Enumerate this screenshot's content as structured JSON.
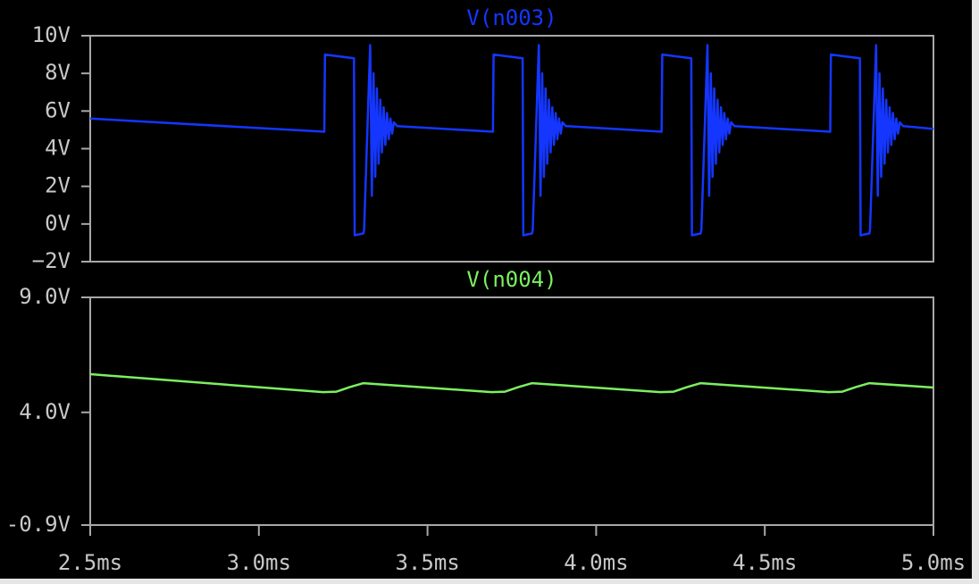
{
  "chart_data": [
    {
      "type": "line",
      "xlim": [
        2.5,
        5.0
      ],
      "ylim": [
        -2,
        10
      ],
      "yticks": [
        {
          "value": 10,
          "label": "10V"
        },
        {
          "value": 8,
          "label": "8V"
        },
        {
          "value": 6,
          "label": "6V"
        },
        {
          "value": 4,
          "label": "4V"
        },
        {
          "value": 2,
          "label": "2V"
        },
        {
          "value": 0,
          "label": "0V"
        },
        {
          "value": -2,
          "label": "−2V"
        }
      ],
      "x": [
        2.5,
        3.194,
        3.196,
        3.282,
        3.284,
        3.31,
        3.312,
        3.33,
        3.335,
        3.34,
        3.345,
        3.35,
        3.355,
        3.36,
        3.365,
        3.37,
        3.375,
        3.38,
        3.385,
        3.39,
        3.395,
        3.4,
        3.41,
        3.694,
        3.696,
        3.782,
        3.784,
        3.81,
        3.812,
        3.83,
        3.835,
        3.84,
        3.845,
        3.85,
        3.855,
        3.86,
        3.865,
        3.87,
        3.875,
        3.88,
        3.885,
        3.89,
        3.895,
        3.9,
        3.91,
        4.194,
        4.196,
        4.282,
        4.284,
        4.31,
        4.312,
        4.33,
        4.335,
        4.34,
        4.345,
        4.35,
        4.355,
        4.36,
        4.365,
        4.37,
        4.375,
        4.38,
        4.385,
        4.39,
        4.395,
        4.4,
        4.41,
        4.694,
        4.696,
        4.782,
        4.784,
        4.81,
        4.812,
        4.83,
        4.835,
        4.84,
        4.845,
        4.85,
        4.855,
        4.86,
        4.865,
        4.87,
        4.875,
        4.88,
        4.885,
        4.89,
        4.895,
        4.9,
        4.91,
        5.0
      ],
      "series": [
        {
          "name": "V(n003)",
          "color": "#1436ff",
          "values": [
            5.6,
            4.9,
            9.0,
            8.8,
            -0.6,
            -0.5,
            -0.3,
            9.5,
            1.5,
            8.0,
            2.5,
            7.2,
            3.2,
            6.6,
            3.8,
            6.2,
            4.2,
            5.9,
            4.5,
            5.6,
            4.8,
            5.4,
            5.2,
            4.9,
            9.0,
            8.8,
            -0.6,
            -0.5,
            -0.3,
            9.5,
            1.5,
            8.0,
            2.5,
            7.2,
            3.2,
            6.6,
            3.8,
            6.2,
            4.2,
            5.9,
            4.5,
            5.6,
            4.8,
            5.4,
            5.2,
            4.9,
            9.0,
            8.8,
            -0.6,
            -0.5,
            -0.3,
            9.5,
            1.5,
            8.0,
            2.5,
            7.2,
            3.2,
            6.6,
            3.8,
            6.2,
            4.2,
            5.9,
            4.5,
            5.6,
            4.8,
            5.4,
            5.2,
            4.9,
            9.0,
            8.8,
            -0.6,
            -0.5,
            -0.3,
            9.5,
            1.5,
            8.0,
            2.5,
            7.2,
            3.2,
            6.6,
            3.8,
            6.2,
            4.2,
            5.9,
            4.5,
            5.6,
            4.8,
            5.4,
            5.2,
            5.05
          ]
        }
      ]
    },
    {
      "type": "line",
      "xlim": [
        2.5,
        5.0
      ],
      "xticks": [
        {
          "value": 2.5,
          "label": "2.5ms"
        },
        {
          "value": 3.0,
          "label": "3.0ms"
        },
        {
          "value": 3.5,
          "label": "3.5ms"
        },
        {
          "value": 4.0,
          "label": "4.0ms"
        },
        {
          "value": 4.5,
          "label": "4.5ms"
        },
        {
          "value": 5.0,
          "label": "5.0ms"
        }
      ],
      "ylim": [
        -0.9,
        9.0
      ],
      "yticks": [
        {
          "value": 9.0,
          "label": "9.0V"
        },
        {
          "value": 4.0,
          "label": "4.0V"
        },
        {
          "value": -0.9,
          "label": "-0.9V"
        }
      ],
      "x": [
        2.5,
        3.19,
        3.23,
        3.27,
        3.31,
        3.69,
        3.73,
        3.77,
        3.81,
        4.19,
        4.23,
        4.27,
        4.31,
        4.69,
        4.73,
        4.77,
        4.81,
        5.0
      ],
      "series": [
        {
          "name": "V(n004)",
          "color": "#7cf060",
          "values": [
            5.66,
            4.88,
            4.9,
            5.1,
            5.27,
            4.88,
            4.9,
            5.1,
            5.27,
            4.88,
            4.9,
            5.1,
            5.27,
            4.88,
            4.9,
            5.1,
            5.27,
            5.08
          ]
        }
      ]
    }
  ]
}
